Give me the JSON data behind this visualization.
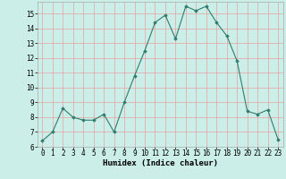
{
  "x": [
    0,
    1,
    2,
    3,
    4,
    5,
    6,
    7,
    8,
    9,
    10,
    11,
    12,
    13,
    14,
    15,
    16,
    17,
    18,
    19,
    20,
    21,
    22,
    23
  ],
  "y": [
    6.4,
    7.0,
    8.6,
    8.0,
    7.8,
    7.8,
    8.2,
    7.0,
    9.0,
    10.8,
    12.5,
    14.4,
    14.9,
    13.3,
    15.5,
    15.2,
    15.5,
    14.4,
    13.5,
    11.8,
    8.4,
    8.2,
    8.5,
    6.5
  ],
  "line_color": "#2e7d6e",
  "marker": "D",
  "marker_size": 1.8,
  "bg_color": "#cceee8",
  "grid_color": "#e8a0a0",
  "xlim": [
    -0.5,
    23.5
  ],
  "ylim": [
    6,
    15.8
  ],
  "yticks": [
    6,
    7,
    8,
    9,
    10,
    11,
    12,
    13,
    14,
    15
  ],
  "xticks": [
    0,
    1,
    2,
    3,
    4,
    5,
    6,
    7,
    8,
    9,
    10,
    11,
    12,
    13,
    14,
    15,
    16,
    17,
    18,
    19,
    20,
    21,
    22,
    23
  ],
  "xlabel": "Humidex (Indice chaleur)",
  "xlabel_fontsize": 6.5,
  "tick_fontsize": 5.5
}
